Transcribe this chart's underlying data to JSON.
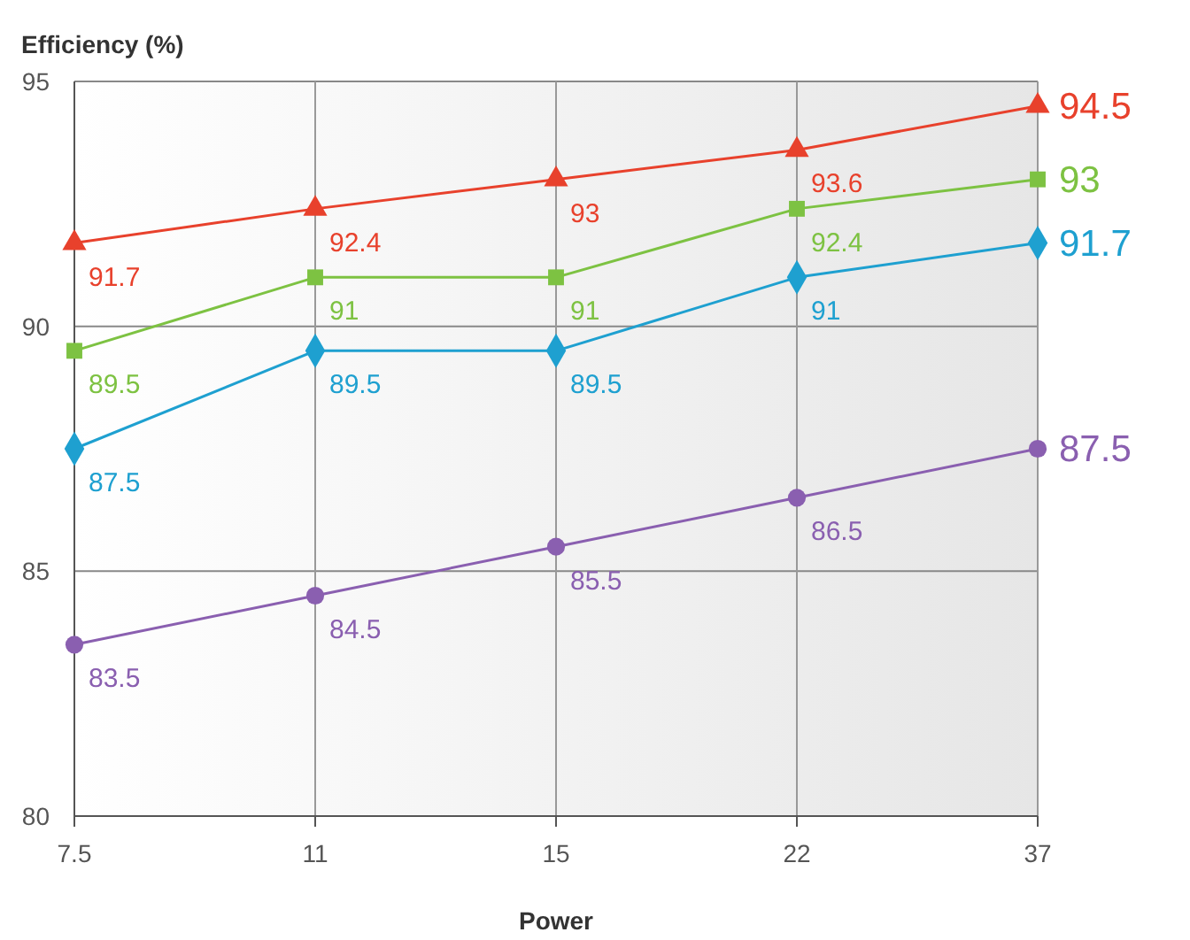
{
  "chart_data": {
    "type": "line",
    "xlabel": "Power",
    "ylabel": "Efficiency (%)",
    "categories": [
      "7.5",
      "11",
      "15",
      "22",
      "37"
    ],
    "ylim": [
      80,
      95
    ],
    "yticks": [
      80,
      85,
      90,
      95
    ],
    "grid": true,
    "data_labels": true,
    "line_style": "solid",
    "series": [
      {
        "color": "#e8412c",
        "marker": "triangle",
        "values": [
          91.7,
          92.4,
          93,
          93.6,
          94.5
        ]
      },
      {
        "color": "#7dc242",
        "marker": "square",
        "values": [
          89.5,
          91,
          91,
          92.4,
          93
        ]
      },
      {
        "color": "#1ea0d0",
        "marker": "diamond",
        "values": [
          87.5,
          89.5,
          89.5,
          91,
          91.7
        ]
      },
      {
        "color": "#8a5fb0",
        "marker": "circle",
        "values": [
          83.5,
          84.5,
          85.5,
          86.5,
          87.5
        ]
      }
    ]
  }
}
